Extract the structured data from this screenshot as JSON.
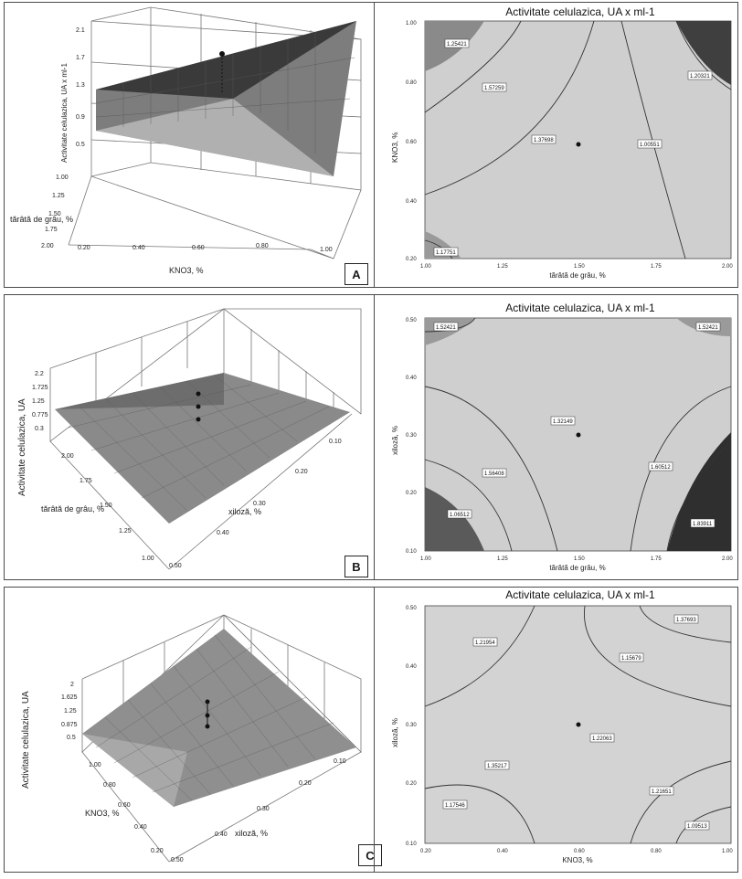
{
  "panels": [
    {
      "id": "A",
      "surface": {
        "zlabel": "Activitate celulazica, UA x ml-1",
        "ylabel": "tărâtă de grâu, %",
        "xlabel": "KNO3, %",
        "zticks": [
          "2.1",
          "1.7",
          "1.3",
          "0.9",
          "0.5"
        ],
        "yticks": [
          "1.00",
          "1.25",
          "1.50",
          "1.75",
          "2.00"
        ],
        "xticks": [
          "0.20",
          "0.40",
          "0.60",
          "0.80",
          "1.00"
        ]
      },
      "contour": {
        "title": "Activitate celulazica, UA x ml-1",
        "xlabel": "tărâtă de grâu, %",
        "ylabel": "KNO3, %",
        "xticks": [
          "1.00",
          "1.25",
          "1.50",
          "1.75",
          "2.00"
        ],
        "yticks": [
          "1.00",
          "0.80",
          "0.60",
          "0.40",
          "0.20"
        ],
        "contour_labels": [
          "1.25421",
          "1.57259",
          "1.20321",
          "1.37698",
          "1.00551",
          "1.17751"
        ]
      }
    },
    {
      "id": "B",
      "surface": {
        "zlabel": "Activitate celulazica, UA",
        "ylabel": "tărâtă de grâu, %",
        "xlabel": "xiloză, %",
        "zticks": [
          "2.2",
          "1.725",
          "1.25",
          "0.775",
          "0.3"
        ],
        "yticks": [
          "2.00",
          "1.75",
          "1.50",
          "1.25",
          "1.00"
        ],
        "xticks": [
          "0.50",
          "0.40",
          "0.30",
          "0.20",
          "0.10"
        ]
      },
      "contour": {
        "title": "Activitate celulazica, UA x ml-1",
        "xlabel": "tărâtă de grâu, %",
        "ylabel": "xiloză, %",
        "xticks": [
          "1.00",
          "1.25",
          "1.50",
          "1.75",
          "2.00"
        ],
        "yticks": [
          "0.50",
          "0.40",
          "0.30",
          "0.20",
          "0.10"
        ],
        "contour_labels": [
          "1.52421",
          "1.52421",
          "1.32149",
          "1.56408",
          "1.06512",
          "1.60512",
          "1.83911"
        ]
      }
    },
    {
      "id": "C",
      "surface": {
        "zlabel": "Activitate celulazica, UA",
        "ylabel": "KNO3, %",
        "xlabel": "xiloză, %",
        "zticks": [
          "2",
          "1.625",
          "1.25",
          "0.875",
          "0.5"
        ],
        "yticks": [
          "1.00",
          "0.80",
          "0.60",
          "0.40",
          "0.20"
        ],
        "xticks": [
          "0.50",
          "0.40",
          "0.30",
          "0.20",
          "0.10"
        ]
      },
      "contour": {
        "title": "Activitate celulazica, UA x ml-1",
        "xlabel": "KNO3, %",
        "ylabel": "xiloză, %",
        "xticks": [
          "0.20",
          "0.40",
          "0.60",
          "0.80",
          "1.00"
        ],
        "yticks": [
          "0.50",
          "0.40",
          "0.30",
          "0.20",
          "0.10"
        ],
        "contour_labels": [
          "1.21954",
          "1.15679",
          "1.37693",
          "1.22063",
          "1.35217",
          "1.21651",
          "1.17546",
          "1.09513"
        ]
      }
    }
  ],
  "colors": {
    "surface_dark": "#2b2b2b",
    "surface_light": "#9a9a9a",
    "contour_bg": "#c9c9c9",
    "contour_dark": "#3c3c3c",
    "line": "#333333"
  }
}
